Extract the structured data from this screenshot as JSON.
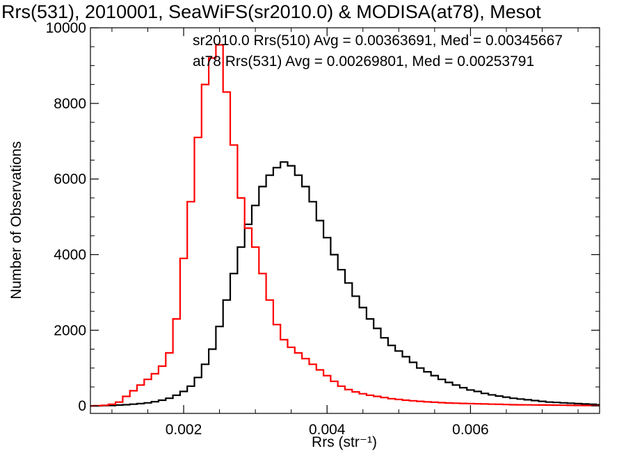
{
  "title": "Rrs(531), 2010001, SeaWiFS(sr2010.0) & MODISA(at78), Mesot",
  "annotations": {
    "black": "sr2010.0 Rrs(510) Avg = 0.00363691, Med = 0.00345667",
    "red": "at78 Rrs(531) Avg = 0.00269801, Med = 0.00253791"
  },
  "colors": {
    "black_series": "#000000",
    "red_series": "#ff0000"
  },
  "chart_data": {
    "type": "line",
    "step": true,
    "title": "Rrs(531), 2010001, SeaWiFS(sr2010.0) & MODISA(at78), Mesot",
    "xlabel": "Rrs (str⁻¹)",
    "ylabel": "Number of Observations",
    "xlim": [
      0.0007,
      0.0078
    ],
    "ylim": [
      -200,
      10000
    ],
    "xticks": [
      0.002,
      0.004,
      0.006
    ],
    "xtick_labels": [
      "0.002",
      "0.004",
      "0.006"
    ],
    "yticks": [
      0,
      2000,
      4000,
      6000,
      8000,
      10000
    ],
    "ytick_labels": [
      "0",
      "2000",
      "4000",
      "6000",
      "8000",
      "10000"
    ],
    "x": [
      0.0007,
      0.0008,
      0.0009,
      0.001,
      0.0011,
      0.0012,
      0.0013,
      0.0014,
      0.0015,
      0.0016,
      0.0017,
      0.0018,
      0.0019,
      0.002,
      0.0021,
      0.0022,
      0.0023,
      0.0024,
      0.0025,
      0.0026,
      0.0027,
      0.0028,
      0.0029,
      0.003,
      0.0031,
      0.0032,
      0.0033,
      0.0034,
      0.0035,
      0.0036,
      0.0037,
      0.0038,
      0.0039,
      0.004,
      0.0041,
      0.0042,
      0.0043,
      0.0044,
      0.0045,
      0.0046,
      0.0047,
      0.0048,
      0.0049,
      0.005,
      0.0051,
      0.0052,
      0.0053,
      0.0054,
      0.0055,
      0.0056,
      0.0057,
      0.0058,
      0.0059,
      0.006,
      0.0061,
      0.0062,
      0.0063,
      0.0064,
      0.0065,
      0.0066,
      0.0067,
      0.0068,
      0.0069,
      0.007,
      0.0071,
      0.0072,
      0.0073,
      0.0074,
      0.0075,
      0.0076,
      0.0077,
      0.0078
    ],
    "series": [
      {
        "name": "sr2010.0 Rrs(510)",
        "color": "#000000",
        "values": [
          0,
          0,
          5,
          10,
          20,
          30,
          45,
          60,
          80,
          110,
          150,
          200,
          280,
          380,
          520,
          750,
          1100,
          1500,
          2100,
          2800,
          3500,
          4200,
          4800,
          5300,
          5800,
          6100,
          6300,
          6450,
          6350,
          6100,
          5800,
          5400,
          4900,
          4450,
          4000,
          3600,
          3250,
          2900,
          2600,
          2300,
          2050,
          1800,
          1600,
          1450,
          1300,
          1150,
          1000,
          900,
          800,
          700,
          620,
          550,
          480,
          420,
          380,
          330,
          290,
          260,
          230,
          200,
          180,
          160,
          140,
          120,
          100,
          90,
          80,
          70,
          60,
          50,
          40,
          30
        ]
      },
      {
        "name": "at78 Rrs(531)",
        "color": "#ff0000",
        "values": [
          0,
          5,
          15,
          40,
          100,
          250,
          400,
          550,
          700,
          850,
          1050,
          1400,
          2300,
          3900,
          5400,
          7100,
          8500,
          9200,
          9550,
          8300,
          6900,
          5500,
          4700,
          4200,
          3500,
          2800,
          2150,
          1750,
          1550,
          1400,
          1250,
          1100,
          950,
          800,
          650,
          520,
          430,
          370,
          320,
          280,
          250,
          220,
          190,
          170,
          150,
          135,
          120,
          105,
          95,
          85,
          75,
          70,
          65,
          60,
          55,
          50,
          45,
          40,
          35,
          30,
          28,
          26,
          24,
          22,
          20,
          18,
          16,
          14,
          12,
          10,
          8,
          6
        ]
      }
    ]
  }
}
